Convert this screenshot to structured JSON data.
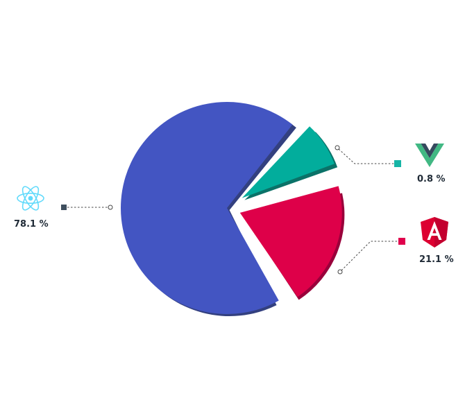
{
  "chart_data": {
    "type": "pie",
    "exploded": true,
    "slices": [
      {
        "label": "78.1 %",
        "value": 78.1,
        "logo": "react-icon",
        "color": "#4355c2",
        "shadow": "#33407f",
        "marker": "#3f4f5e"
      },
      {
        "label": "0.8 %",
        "value": 0.8,
        "logo": "vue-icon",
        "color": "#02ad9c",
        "shadow": "#0b7268",
        "marker": "#16b5a6"
      },
      {
        "label": "21.1 %",
        "value": 21.1,
        "logo": "angular-icon",
        "color": "#de0049",
        "shadow": "#99003b",
        "marker": "#e0004c"
      }
    ]
  }
}
